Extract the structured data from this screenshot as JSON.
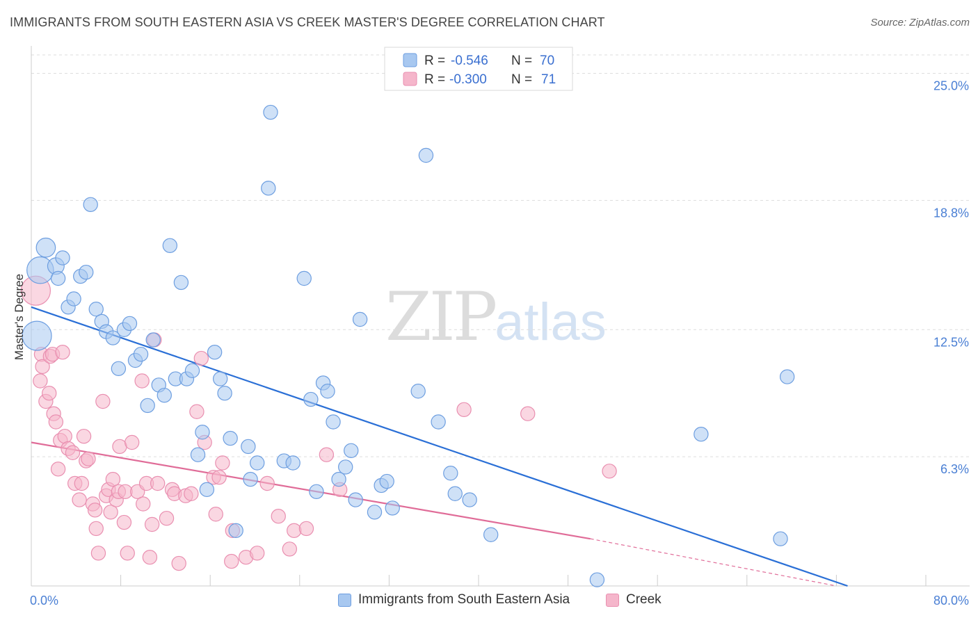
{
  "header": {
    "title": "IMMIGRANTS FROM SOUTH EASTERN ASIA VS CREEK MASTER'S DEGREE CORRELATION CHART",
    "source": "Source: ZipAtlas.com"
  },
  "watermark": {
    "zip": "ZIP",
    "atlas": "atlas"
  },
  "colors": {
    "blue_fill": "#a8c8f0",
    "blue_stroke": "#6d9ee0",
    "blue_line": "#2a6fd6",
    "pink_fill": "#f5b6cb",
    "pink_stroke": "#e98fb0",
    "pink_line": "#e06c98",
    "axis_label": "#4a7fd4"
  },
  "legend": {
    "row1": {
      "r_label": "R =",
      "r_value": "-0.546",
      "n_label": "N =",
      "n_value": "70"
    },
    "row2": {
      "r_label": "R =",
      "r_value": "-0.300",
      "n_label": "N =",
      "n_value": "71"
    }
  },
  "bottom_legend": {
    "series1": "Immigrants from South Eastern Asia",
    "series2": "Creek"
  },
  "chart_data": {
    "type": "scatter",
    "title": "IMMIGRANTS FROM SOUTH EASTERN ASIA VS CREEK MASTER'S DEGREE CORRELATION CHART",
    "xlabel": "",
    "ylabel": "Master's Degree",
    "xlim": [
      0,
      80
    ],
    "ylim": [
      0,
      26
    ],
    "x_tick_labels": {
      "left": "0.0%",
      "right": "80.0%"
    },
    "y_ticks": [
      {
        "value": 6.3,
        "label": "6.3%"
      },
      {
        "value": 12.5,
        "label": "12.5%"
      },
      {
        "value": 18.8,
        "label": "18.8%"
      },
      {
        "value": 25.0,
        "label": "25.0%"
      }
    ],
    "series": [
      {
        "name": "Immigrants from South Eastern Asia",
        "color": "#a8c8f0",
        "trend": {
          "x1": 0,
          "y1": 13.6,
          "x2": 73,
          "y2": 0
        },
        "points": [
          [
            0.5,
            12.2,
            22
          ],
          [
            0.8,
            15.4,
            20
          ],
          [
            1.3,
            16.5,
            14
          ],
          [
            2.2,
            15.6,
            12
          ],
          [
            2.4,
            15.0,
            10
          ],
          [
            2.8,
            16.0,
            10
          ],
          [
            3.3,
            13.6,
            10
          ],
          [
            3.8,
            14.0,
            10
          ],
          [
            4.4,
            15.1,
            10
          ],
          [
            4.9,
            15.3,
            10
          ],
          [
            5.3,
            18.6,
            10
          ],
          [
            5.8,
            13.5,
            10
          ],
          [
            6.3,
            12.9,
            10
          ],
          [
            6.7,
            12.4,
            10
          ],
          [
            7.3,
            12.1,
            10
          ],
          [
            7.8,
            10.6,
            10
          ],
          [
            8.3,
            12.5,
            10
          ],
          [
            8.8,
            12.8,
            10
          ],
          [
            9.3,
            11.0,
            10
          ],
          [
            9.8,
            11.3,
            10
          ],
          [
            10.4,
            8.8,
            10
          ],
          [
            10.9,
            12.0,
            10
          ],
          [
            11.4,
            9.8,
            10
          ],
          [
            11.9,
            9.3,
            10
          ],
          [
            12.4,
            16.6,
            10
          ],
          [
            12.9,
            10.1,
            10
          ],
          [
            13.4,
            14.8,
            10
          ],
          [
            13.9,
            10.1,
            10
          ],
          [
            14.4,
            10.5,
            10
          ],
          [
            14.9,
            6.4,
            10
          ],
          [
            15.3,
            7.5,
            10
          ],
          [
            15.7,
            4.7,
            10
          ],
          [
            16.4,
            11.4,
            10
          ],
          [
            16.9,
            10.1,
            10
          ],
          [
            17.3,
            9.4,
            10
          ],
          [
            17.8,
            7.2,
            10
          ],
          [
            18.3,
            2.7,
            10
          ],
          [
            19.4,
            6.8,
            10
          ],
          [
            19.6,
            5.2,
            10
          ],
          [
            20.2,
            6.0,
            10
          ],
          [
            21.2,
            19.4,
            10
          ],
          [
            21.4,
            23.1,
            10
          ],
          [
            22.6,
            6.1,
            10
          ],
          [
            23.4,
            6.0,
            10
          ],
          [
            24.4,
            15.0,
            10
          ],
          [
            25.0,
            9.1,
            10
          ],
          [
            25.5,
            4.6,
            10
          ],
          [
            26.1,
            9.9,
            10
          ],
          [
            26.5,
            9.5,
            10
          ],
          [
            27.0,
            8.0,
            10
          ],
          [
            27.5,
            5.2,
            10
          ],
          [
            28.1,
            5.8,
            10
          ],
          [
            28.6,
            6.6,
            10
          ],
          [
            29.0,
            4.2,
            10
          ],
          [
            29.4,
            13.0,
            10
          ],
          [
            30.7,
            3.6,
            10
          ],
          [
            31.3,
            4.9,
            10
          ],
          [
            31.8,
            5.1,
            10
          ],
          [
            32.3,
            3.8,
            10
          ],
          [
            34.6,
            9.5,
            10
          ],
          [
            35.3,
            21.0,
            10
          ],
          [
            36.4,
            8.0,
            10
          ],
          [
            37.5,
            5.5,
            10
          ],
          [
            37.9,
            4.5,
            10
          ],
          [
            39.2,
            4.2,
            10
          ],
          [
            41.1,
            2.5,
            10
          ],
          [
            50.6,
            0.3,
            10
          ],
          [
            59.9,
            7.4,
            10
          ],
          [
            67.0,
            2.3,
            10
          ],
          [
            67.6,
            10.2,
            10
          ]
        ]
      },
      {
        "name": "Creek",
        "color": "#f5b6cb",
        "trend": {
          "x1": 0,
          "y1": 7.0,
          "x2": 50,
          "y2": 2.3,
          "dashed_to": {
            "x": 72,
            "y": 0
          }
        },
        "points": [
          [
            0.4,
            14.4,
            22
          ],
          [
            0.8,
            10.0,
            10
          ],
          [
            0.9,
            11.3,
            10
          ],
          [
            1.0,
            10.7,
            10
          ],
          [
            1.3,
            9.0,
            10
          ],
          [
            1.6,
            9.4,
            10
          ],
          [
            1.7,
            11.2,
            10
          ],
          [
            1.9,
            11.3,
            10
          ],
          [
            2.0,
            8.4,
            10
          ],
          [
            2.2,
            8.0,
            10
          ],
          [
            2.4,
            5.7,
            10
          ],
          [
            2.6,
            7.1,
            10
          ],
          [
            2.8,
            11.4,
            10
          ],
          [
            3.0,
            7.3,
            10
          ],
          [
            3.3,
            6.7,
            10
          ],
          [
            3.7,
            6.5,
            10
          ],
          [
            3.9,
            5.0,
            10
          ],
          [
            4.3,
            4.2,
            10
          ],
          [
            4.5,
            5.0,
            10
          ],
          [
            4.7,
            7.3,
            10
          ],
          [
            4.9,
            6.1,
            10
          ],
          [
            5.1,
            6.2,
            10
          ],
          [
            5.5,
            4.0,
            10
          ],
          [
            5.7,
            3.7,
            10
          ],
          [
            5.8,
            2.8,
            10
          ],
          [
            6.0,
            1.6,
            10
          ],
          [
            6.4,
            9.0,
            10
          ],
          [
            6.7,
            4.4,
            10
          ],
          [
            6.9,
            4.7,
            10
          ],
          [
            7.1,
            3.6,
            10
          ],
          [
            7.3,
            5.2,
            10
          ],
          [
            7.6,
            4.2,
            10
          ],
          [
            7.8,
            4.6,
            10
          ],
          [
            7.9,
            6.8,
            10
          ],
          [
            8.3,
            3.1,
            10
          ],
          [
            8.4,
            4.6,
            10
          ],
          [
            8.6,
            1.6,
            10
          ],
          [
            9.0,
            7.0,
            10
          ],
          [
            9.5,
            4.6,
            10
          ],
          [
            9.9,
            10.0,
            10
          ],
          [
            10.0,
            4.0,
            10
          ],
          [
            10.3,
            5.0,
            10
          ],
          [
            10.6,
            1.4,
            10
          ],
          [
            10.8,
            3.0,
            10
          ],
          [
            11.0,
            12.0,
            10
          ],
          [
            11.3,
            5.0,
            10
          ],
          [
            12.1,
            3.3,
            10
          ],
          [
            12.6,
            4.7,
            10
          ],
          [
            12.8,
            4.5,
            10
          ],
          [
            13.2,
            1.1,
            10
          ],
          [
            13.8,
            4.4,
            10
          ],
          [
            14.3,
            4.5,
            10
          ],
          [
            14.8,
            8.5,
            10
          ],
          [
            15.2,
            11.1,
            10
          ],
          [
            15.5,
            7.0,
            10
          ],
          [
            16.3,
            5.3,
            10
          ],
          [
            16.5,
            3.5,
            10
          ],
          [
            16.8,
            5.3,
            10
          ],
          [
            17.1,
            6.0,
            10
          ],
          [
            17.9,
            1.2,
            10
          ],
          [
            18.0,
            2.7,
            10
          ],
          [
            19.2,
            1.4,
            10
          ],
          [
            20.2,
            1.6,
            10
          ],
          [
            21.1,
            5.0,
            10
          ],
          [
            22.1,
            3.4,
            10
          ],
          [
            23.1,
            1.8,
            10
          ],
          [
            23.5,
            2.7,
            10
          ],
          [
            24.6,
            2.8,
            10
          ],
          [
            26.4,
            6.4,
            10
          ],
          [
            27.6,
            4.7,
            10
          ],
          [
            38.7,
            8.6,
            10
          ]
        ],
        "extra_points": [
          [
            44.4,
            8.4,
            10
          ],
          [
            51.7,
            5.6,
            10
          ]
        ]
      }
    ]
  }
}
